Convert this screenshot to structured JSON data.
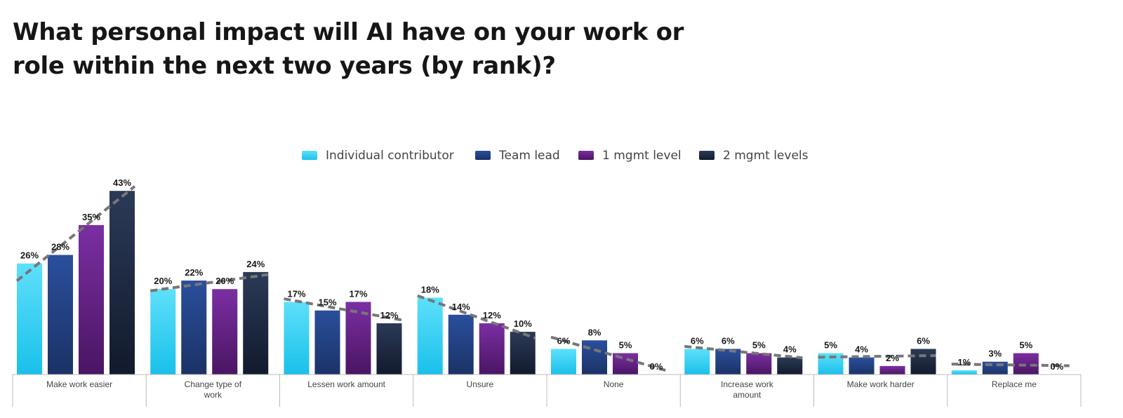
{
  "title": "What personal impact will AI have on your work or role within the next two years (by rank)?",
  "colors": {
    "Individual contributor": [
      "#5ee0fa",
      "#19c0ea"
    ],
    "Team lead": [
      "#2a4f9c",
      "#1b3266"
    ],
    "1 mgmt level": [
      "#7b2fa2",
      "#4a1563"
    ],
    "2 mgmt levels": [
      "#2b3a57",
      "#121a2c"
    ],
    "trendline": "#777777",
    "axis": "#bbbbbb"
  },
  "chart_data": {
    "type": "bar",
    "title": "What personal impact will AI have on your work or role within the next two years (by rank)?",
    "legend_position": "top-center",
    "grid": false,
    "trendlines": true,
    "ylim": [
      0,
      45
    ],
    "categories": [
      "Make work easier",
      "Change type of work",
      "Lessen work amount",
      "Unsure",
      "None",
      "Increase work amount",
      "Make work harder",
      "Replace me"
    ],
    "series": [
      {
        "name": "Individual contributor",
        "values": [
          26,
          20,
          17,
          18,
          6,
          6,
          5,
          1
        ]
      },
      {
        "name": "Team lead",
        "values": [
          28,
          22,
          15,
          14,
          8,
          6,
          4,
          3
        ]
      },
      {
        "name": "1 mgmt level",
        "values": [
          35,
          20,
          17,
          12,
          5,
          5,
          2,
          5
        ]
      },
      {
        "name": "2 mgmt levels",
        "values": [
          43,
          24,
          12,
          10,
          0,
          4,
          6,
          0
        ]
      }
    ],
    "value_labels": [
      [
        "26%",
        "20%",
        "17%",
        "18%",
        "6%",
        "6%",
        "5%",
        "1%"
      ],
      [
        "28%",
        "22%",
        "15%",
        "14%",
        "8%",
        "6%",
        "4%",
        "3%"
      ],
      [
        "35%",
        "20%",
        "17%",
        "12%",
        "5%",
        "5%",
        "2%",
        "5%"
      ],
      [
        "43%",
        "24%",
        "12%",
        "10%",
        "0%",
        "4%",
        "6%",
        "0%"
      ]
    ]
  }
}
